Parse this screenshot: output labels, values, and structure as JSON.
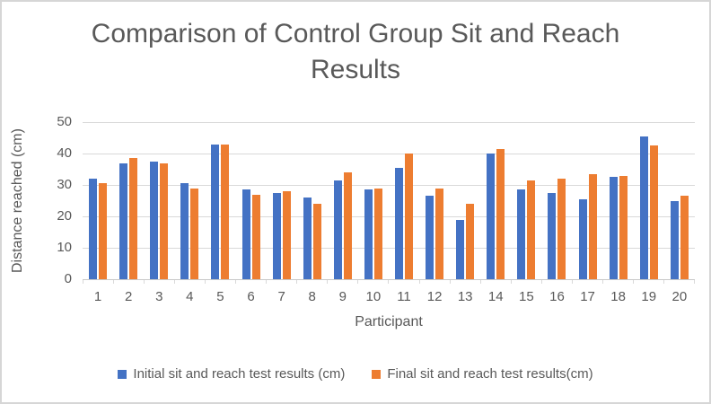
{
  "chart_data": {
    "type": "bar",
    "title": "Comparison of Control Group Sit and Reach Results",
    "xlabel": "Participant",
    "ylabel": "Distance reached (cm)",
    "ylim": [
      0,
      50
    ],
    "yticks": [
      0,
      10,
      20,
      30,
      40,
      50
    ],
    "grid": true,
    "legend_position": "bottom",
    "categories": [
      "1",
      "2",
      "3",
      "4",
      "5",
      "6",
      "7",
      "8",
      "9",
      "10",
      "11",
      "12",
      "13",
      "14",
      "15",
      "16",
      "17",
      "18",
      "19",
      "20"
    ],
    "series": [
      {
        "name": "Initial sit and reach test results (cm)",
        "color": "#4472C4",
        "values": [
          32,
          37,
          37.5,
          30.5,
          43,
          28.5,
          27.5,
          26,
          31.5,
          28.5,
          35.5,
          26.5,
          19,
          40,
          28.5,
          27.5,
          25.5,
          32.5,
          45.5,
          25
        ]
      },
      {
        "name": "Final sit and reach test results(cm)",
        "color": "#ED7D31",
        "values": [
          30.5,
          38.5,
          37,
          29,
          43,
          27,
          28,
          24,
          34,
          29,
          40,
          29,
          24,
          41.5,
          31.5,
          32,
          33.5,
          33,
          42.5,
          26.5
        ]
      }
    ]
  },
  "colors": {
    "text": "#595959",
    "gridline": "#D9D9D9",
    "axis": "#C9C9C9",
    "frame_border": "#D6D6D6",
    "background": "#FFFFFF"
  }
}
